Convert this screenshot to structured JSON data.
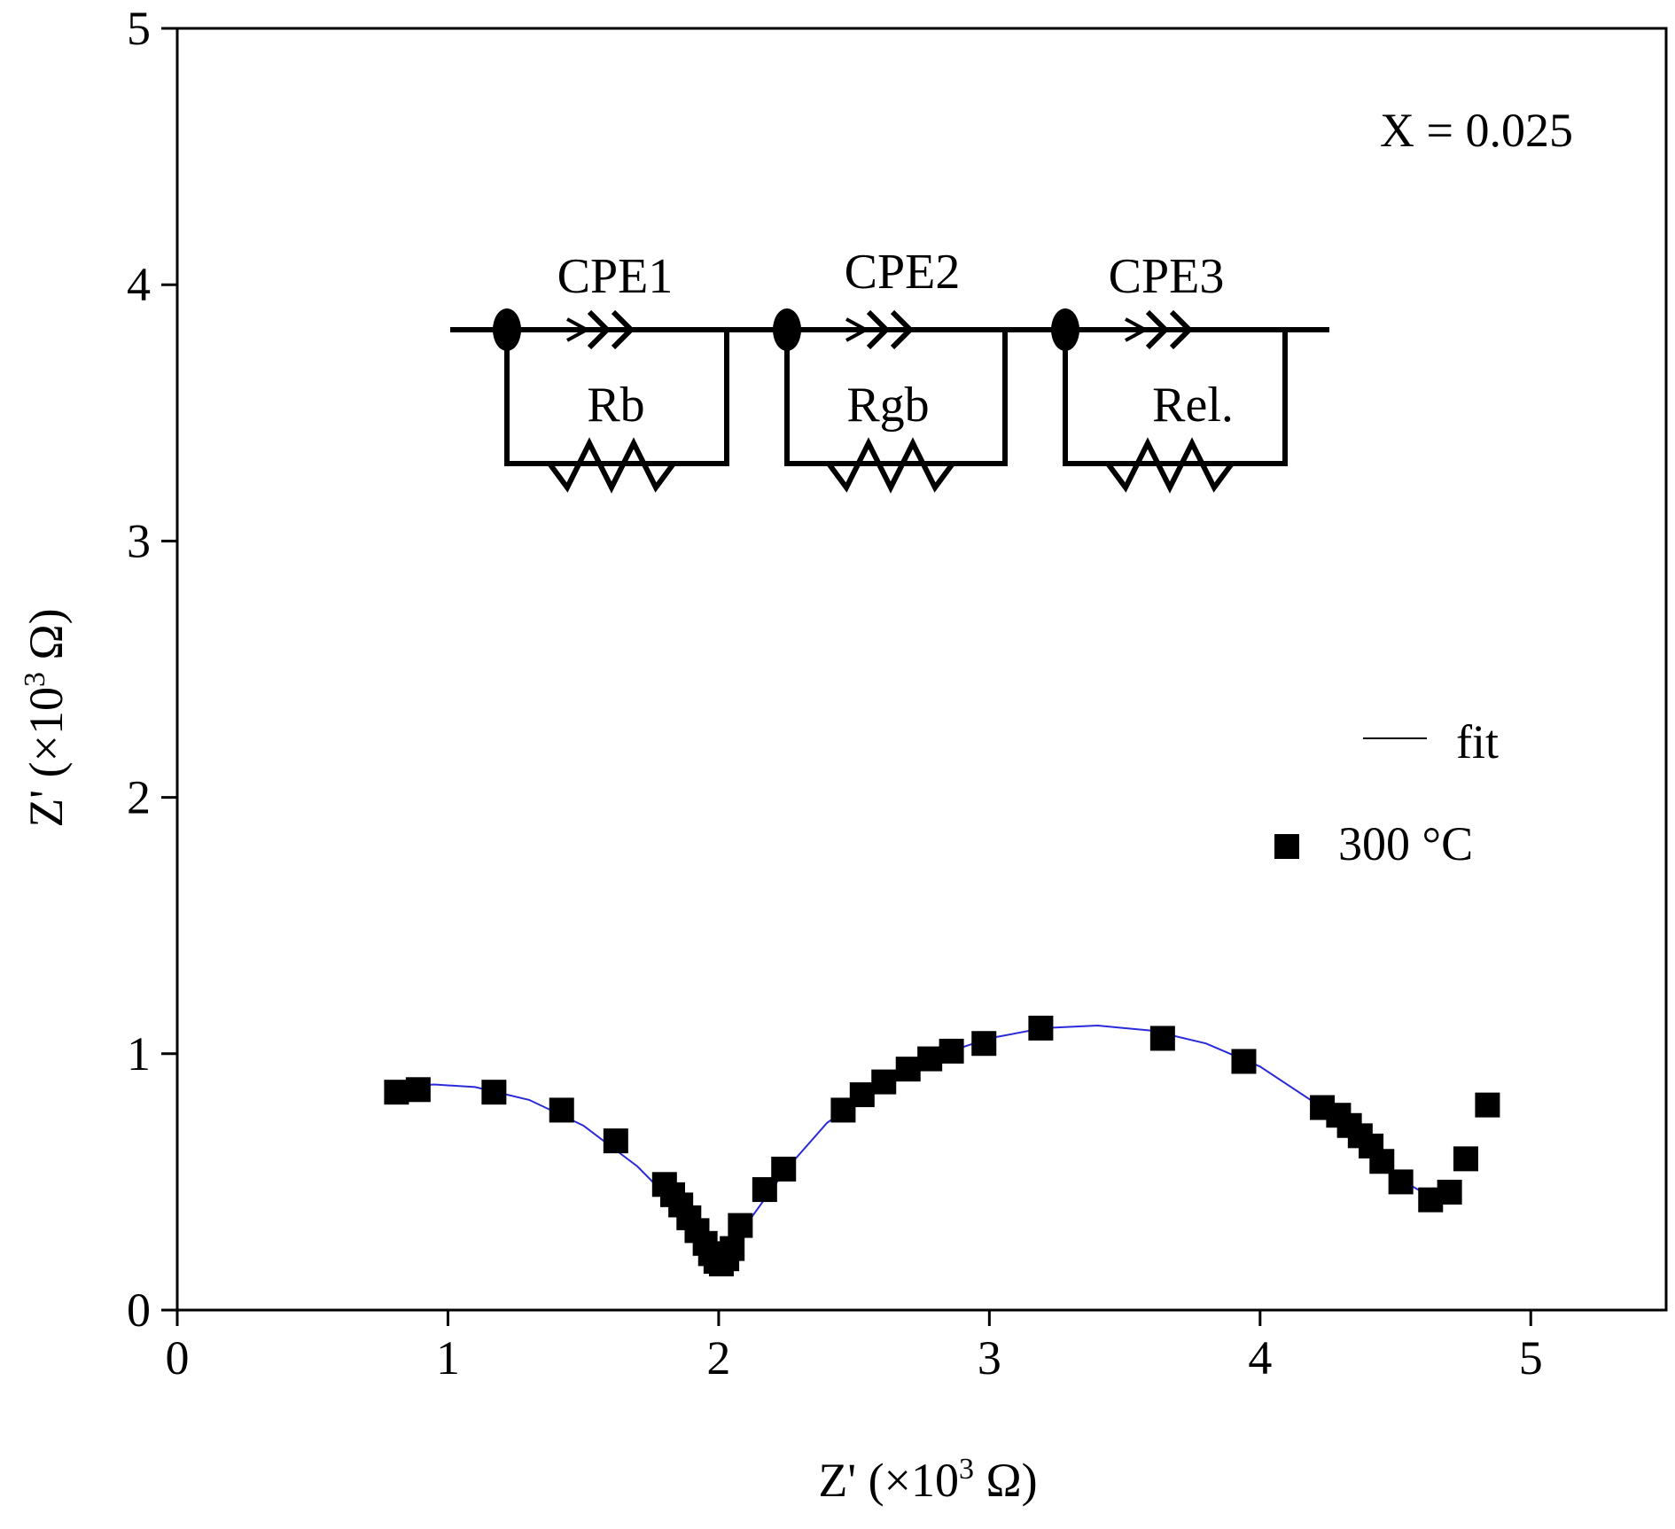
{
  "chart_data": {
    "type": "scatter",
    "xlabel_main": "Z' (×10",
    "xlabel_sup": "3",
    "xlabel_tail": " Ω)",
    "ylabel_main": "Z' (×10",
    "ylabel_sup": "3",
    "ylabel_tail": " Ω)",
    "xlim": [
      0,
      5.5
    ],
    "ylim": [
      0,
      5
    ],
    "xticks": [
      "0",
      "1",
      "2",
      "3",
      "4",
      "5"
    ],
    "yticks": [
      "0",
      "1",
      "2",
      "3",
      "4",
      "5"
    ],
    "annotation": "X = 0.025",
    "legend": {
      "position": "right",
      "fit_label": "fit",
      "data_label": "300 °C"
    },
    "circuit": {
      "elements": [
        {
          "cpe": "CPE1",
          "r": "Rb"
        },
        {
          "cpe": "CPE2",
          "r": "Rgb"
        },
        {
          "cpe": "CPE3",
          "r": "Rel."
        }
      ]
    },
    "colors": {
      "fit": "#2a2adc",
      "markers": "#000000"
    },
    "series": [
      {
        "name": "300 °C",
        "marker": "square",
        "points": [
          [
            0.81,
            0.85
          ],
          [
            0.89,
            0.86
          ],
          [
            1.17,
            0.85
          ],
          [
            1.42,
            0.78
          ],
          [
            1.62,
            0.66
          ],
          [
            1.8,
            0.49
          ],
          [
            1.83,
            0.45
          ],
          [
            1.86,
            0.41
          ],
          [
            1.89,
            0.36
          ],
          [
            1.92,
            0.31
          ],
          [
            1.95,
            0.26
          ],
          [
            1.97,
            0.22
          ],
          [
            1.99,
            0.19
          ],
          [
            2.01,
            0.18
          ],
          [
            2.03,
            0.2
          ],
          [
            2.05,
            0.24
          ],
          [
            2.08,
            0.33
          ],
          [
            2.17,
            0.47
          ],
          [
            2.24,
            0.55
          ],
          [
            2.46,
            0.78
          ],
          [
            2.53,
            0.84
          ],
          [
            2.61,
            0.89
          ],
          [
            2.7,
            0.94
          ],
          [
            2.78,
            0.98
          ],
          [
            2.86,
            1.01
          ],
          [
            2.98,
            1.04
          ],
          [
            3.19,
            1.1
          ],
          [
            3.64,
            1.06
          ],
          [
            3.94,
            0.97
          ],
          [
            4.23,
            0.79
          ],
          [
            4.29,
            0.76
          ],
          [
            4.33,
            0.72
          ],
          [
            4.37,
            0.68
          ],
          [
            4.41,
            0.64
          ],
          [
            4.45,
            0.58
          ],
          [
            4.52,
            0.5
          ],
          [
            4.63,
            0.43
          ],
          [
            4.7,
            0.46
          ],
          [
            4.76,
            0.59
          ],
          [
            4.84,
            0.8
          ]
        ]
      },
      {
        "name": "fit",
        "marker": "line",
        "points": [
          [
            0.81,
            0.87
          ],
          [
            0.95,
            0.88
          ],
          [
            1.1,
            0.87
          ],
          [
            1.3,
            0.82
          ],
          [
            1.5,
            0.72
          ],
          [
            1.7,
            0.56
          ],
          [
            1.85,
            0.4
          ],
          [
            1.93,
            0.28
          ],
          [
            2.0,
            0.18
          ],
          [
            2.05,
            0.24
          ],
          [
            2.12,
            0.36
          ],
          [
            2.25,
            0.55
          ],
          [
            2.4,
            0.73
          ],
          [
            2.6,
            0.88
          ],
          [
            2.8,
            0.99
          ],
          [
            3.0,
            1.06
          ],
          [
            3.2,
            1.1
          ],
          [
            3.4,
            1.11
          ],
          [
            3.6,
            1.09
          ],
          [
            3.8,
            1.04
          ],
          [
            4.0,
            0.95
          ],
          [
            4.2,
            0.81
          ],
          [
            4.4,
            0.63
          ],
          [
            4.55,
            0.49
          ],
          [
            4.65,
            0.43
          ]
        ]
      }
    ]
  }
}
